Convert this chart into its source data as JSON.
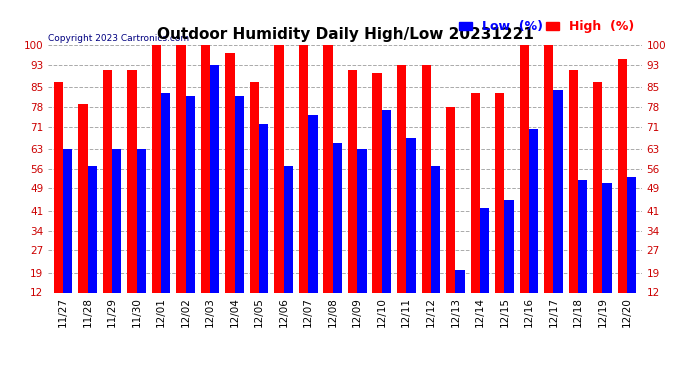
{
  "title": "Outdoor Humidity Daily High/Low 20231221",
  "copyright": "Copyright 2023 Cartronics.com",
  "legend_low": "Low  (%)",
  "legend_high": "High  (%)",
  "categories": [
    "11/27",
    "11/28",
    "11/29",
    "11/30",
    "12/01",
    "12/02",
    "12/03",
    "12/04",
    "12/05",
    "12/06",
    "12/07",
    "12/08",
    "12/09",
    "12/10",
    "12/11",
    "12/12",
    "12/13",
    "12/14",
    "12/15",
    "12/16",
    "12/17",
    "12/18",
    "12/19",
    "12/20"
  ],
  "high_values": [
    87,
    79,
    91,
    91,
    100,
    100,
    100,
    97,
    87,
    100,
    100,
    100,
    91,
    90,
    93,
    93,
    78,
    83,
    83,
    100,
    100,
    91,
    87,
    95
  ],
  "low_values": [
    63,
    57,
    63,
    63,
    83,
    82,
    93,
    82,
    72,
    57,
    75,
    65,
    63,
    77,
    67,
    57,
    20,
    42,
    45,
    70,
    84,
    52,
    51,
    53
  ],
  "ylim_min": 12,
  "ylim_max": 100,
  "yticks": [
    12,
    19,
    27,
    34,
    41,
    49,
    56,
    63,
    71,
    78,
    85,
    93,
    100
  ],
  "bar_width": 0.38,
  "high_color": "#ff0000",
  "low_color": "#0000ff",
  "bg_color": "#ffffff",
  "grid_color": "#aaaaaa",
  "title_fontsize": 11,
  "tick_fontsize": 7.5,
  "legend_fontsize": 9
}
